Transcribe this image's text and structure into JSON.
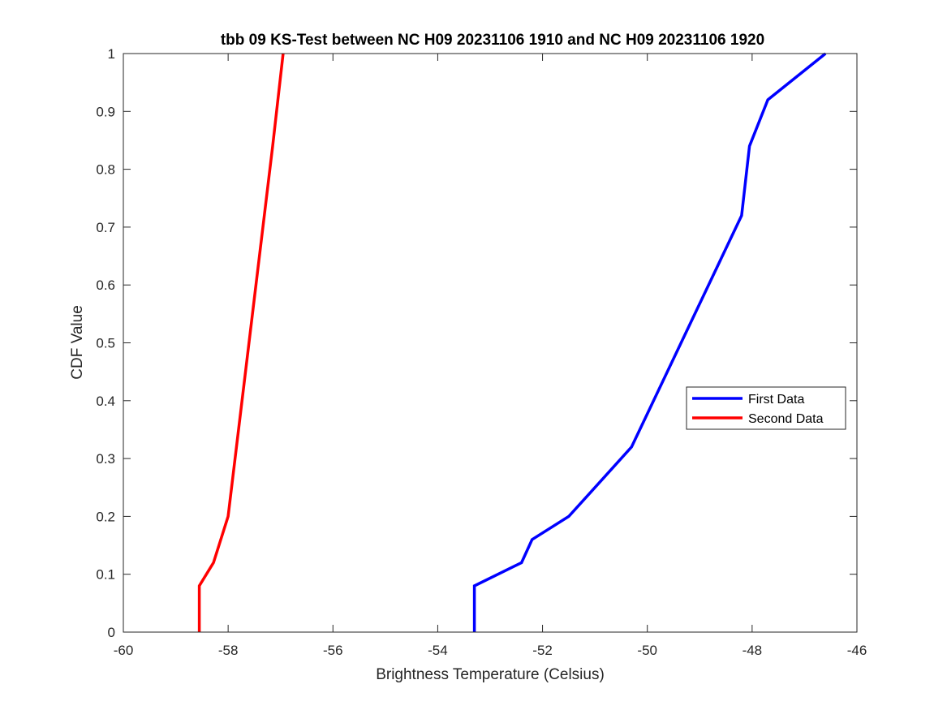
{
  "chart_data": {
    "type": "line",
    "title": "tbb 09 KS-Test between NC H09 20231106 1910 and NC H09 20231106 1920",
    "xlabel": "Brightness Temperature (Celsius)",
    "ylabel": "CDF Value",
    "xlim": [
      -60,
      -46
    ],
    "ylim": [
      0,
      1
    ],
    "x_ticks": [
      -60,
      -58,
      -56,
      -54,
      -52,
      -50,
      -48,
      -46
    ],
    "y_ticks": [
      0,
      0.1,
      0.2,
      0.3,
      0.4,
      0.5,
      0.6,
      0.7,
      0.8,
      0.9,
      1
    ],
    "x_tick_labels": [
      "-60",
      "-58",
      "-56",
      "-54",
      "-52",
      "-50",
      "-48",
      "-46"
    ],
    "y_tick_labels": [
      "0",
      "0.1",
      "0.2",
      "0.3",
      "0.4",
      "0.5",
      "0.6",
      "0.7",
      "0.8",
      "0.9",
      "1"
    ],
    "grid": false,
    "legend_position": "right",
    "series": [
      {
        "name": "First Data",
        "color": "#0000ff",
        "x": [
          -53.3,
          -53.3,
          -52.4,
          -52.2,
          -51.5,
          -51.1,
          -50.3,
          -48.2,
          -48.05,
          -47.7,
          -46.6
        ],
        "y": [
          0,
          0.08,
          0.12,
          0.16,
          0.2,
          0.24,
          0.32,
          0.72,
          0.84,
          0.92,
          1.0
        ]
      },
      {
        "name": "Second Data",
        "color": "#ff0000",
        "x": [
          -58.55,
          -58.55,
          -58.28,
          -58.0,
          -57.15,
          -56.95
        ],
        "y": [
          0,
          0.08,
          0.12,
          0.2,
          0.84,
          1.0
        ]
      }
    ]
  }
}
